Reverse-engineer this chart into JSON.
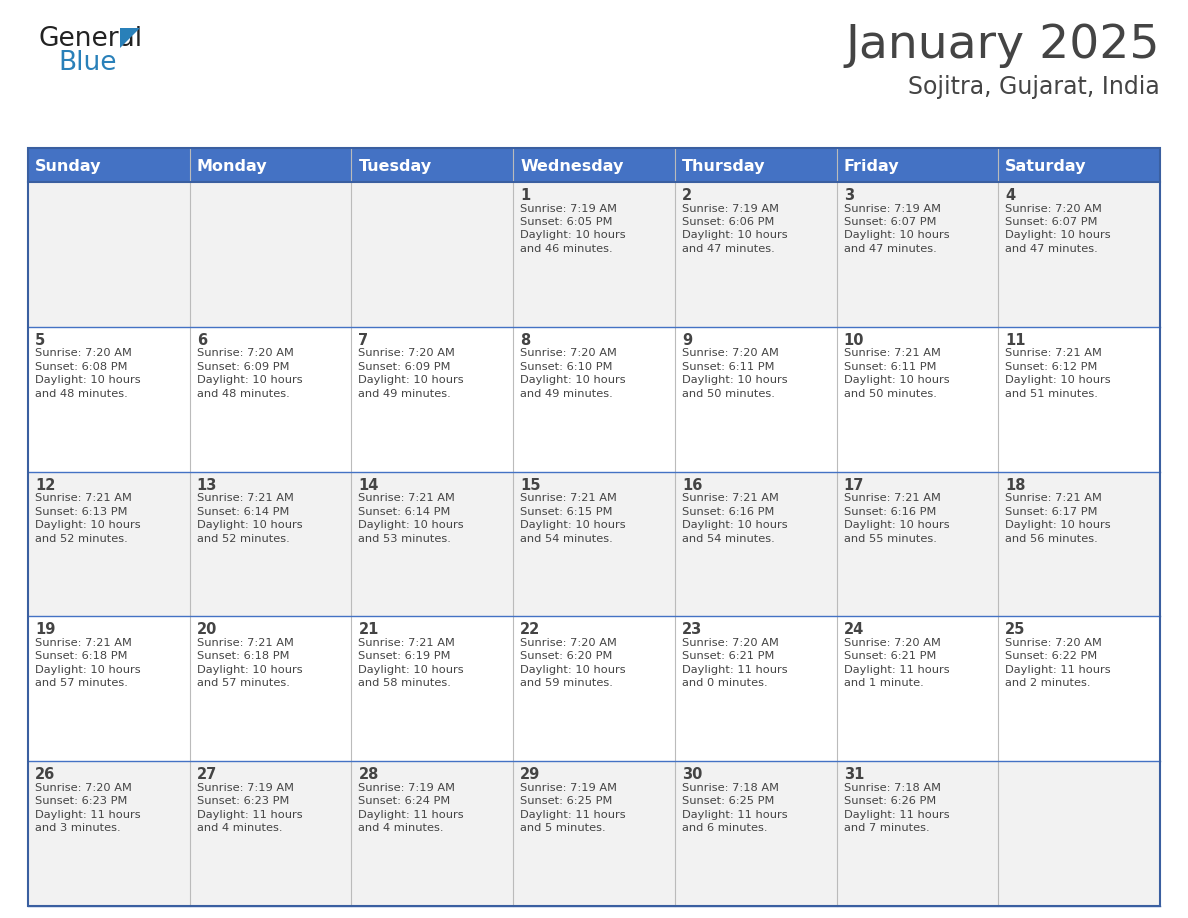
{
  "title": "January 2025",
  "subtitle": "Sojitra, Gujarat, India",
  "header_color": "#4472C4",
  "header_text_color": "#FFFFFF",
  "cell_bg_even": "#F2F2F2",
  "cell_bg_odd": "#FFFFFF",
  "day_names": [
    "Sunday",
    "Monday",
    "Tuesday",
    "Wednesday",
    "Thursday",
    "Friday",
    "Saturday"
  ],
  "days": [
    {
      "day": 1,
      "col": 3,
      "row": 0,
      "sunrise": "7:19 AM",
      "sunset": "6:05 PM",
      "daylight_hours": 10,
      "daylight_minutes": 46
    },
    {
      "day": 2,
      "col": 4,
      "row": 0,
      "sunrise": "7:19 AM",
      "sunset": "6:06 PM",
      "daylight_hours": 10,
      "daylight_minutes": 47
    },
    {
      "day": 3,
      "col": 5,
      "row": 0,
      "sunrise": "7:19 AM",
      "sunset": "6:07 PM",
      "daylight_hours": 10,
      "daylight_minutes": 47
    },
    {
      "day": 4,
      "col": 6,
      "row": 0,
      "sunrise": "7:20 AM",
      "sunset": "6:07 PM",
      "daylight_hours": 10,
      "daylight_minutes": 47
    },
    {
      "day": 5,
      "col": 0,
      "row": 1,
      "sunrise": "7:20 AM",
      "sunset": "6:08 PM",
      "daylight_hours": 10,
      "daylight_minutes": 48
    },
    {
      "day": 6,
      "col": 1,
      "row": 1,
      "sunrise": "7:20 AM",
      "sunset": "6:09 PM",
      "daylight_hours": 10,
      "daylight_minutes": 48
    },
    {
      "day": 7,
      "col": 2,
      "row": 1,
      "sunrise": "7:20 AM",
      "sunset": "6:09 PM",
      "daylight_hours": 10,
      "daylight_minutes": 49
    },
    {
      "day": 8,
      "col": 3,
      "row": 1,
      "sunrise": "7:20 AM",
      "sunset": "6:10 PM",
      "daylight_hours": 10,
      "daylight_minutes": 49
    },
    {
      "day": 9,
      "col": 4,
      "row": 1,
      "sunrise": "7:20 AM",
      "sunset": "6:11 PM",
      "daylight_hours": 10,
      "daylight_minutes": 50
    },
    {
      "day": 10,
      "col": 5,
      "row": 1,
      "sunrise": "7:21 AM",
      "sunset": "6:11 PM",
      "daylight_hours": 10,
      "daylight_minutes": 50
    },
    {
      "day": 11,
      "col": 6,
      "row": 1,
      "sunrise": "7:21 AM",
      "sunset": "6:12 PM",
      "daylight_hours": 10,
      "daylight_minutes": 51
    },
    {
      "day": 12,
      "col": 0,
      "row": 2,
      "sunrise": "7:21 AM",
      "sunset": "6:13 PM",
      "daylight_hours": 10,
      "daylight_minutes": 52
    },
    {
      "day": 13,
      "col": 1,
      "row": 2,
      "sunrise": "7:21 AM",
      "sunset": "6:14 PM",
      "daylight_hours": 10,
      "daylight_minutes": 52
    },
    {
      "day": 14,
      "col": 2,
      "row": 2,
      "sunrise": "7:21 AM",
      "sunset": "6:14 PM",
      "daylight_hours": 10,
      "daylight_minutes": 53
    },
    {
      "day": 15,
      "col": 3,
      "row": 2,
      "sunrise": "7:21 AM",
      "sunset": "6:15 PM",
      "daylight_hours": 10,
      "daylight_minutes": 54
    },
    {
      "day": 16,
      "col": 4,
      "row": 2,
      "sunrise": "7:21 AM",
      "sunset": "6:16 PM",
      "daylight_hours": 10,
      "daylight_minutes": 54
    },
    {
      "day": 17,
      "col": 5,
      "row": 2,
      "sunrise": "7:21 AM",
      "sunset": "6:16 PM",
      "daylight_hours": 10,
      "daylight_minutes": 55
    },
    {
      "day": 18,
      "col": 6,
      "row": 2,
      "sunrise": "7:21 AM",
      "sunset": "6:17 PM",
      "daylight_hours": 10,
      "daylight_minutes": 56
    },
    {
      "day": 19,
      "col": 0,
      "row": 3,
      "sunrise": "7:21 AM",
      "sunset": "6:18 PM",
      "daylight_hours": 10,
      "daylight_minutes": 57
    },
    {
      "day": 20,
      "col": 1,
      "row": 3,
      "sunrise": "7:21 AM",
      "sunset": "6:18 PM",
      "daylight_hours": 10,
      "daylight_minutes": 57
    },
    {
      "day": 21,
      "col": 2,
      "row": 3,
      "sunrise": "7:21 AM",
      "sunset": "6:19 PM",
      "daylight_hours": 10,
      "daylight_minutes": 58
    },
    {
      "day": 22,
      "col": 3,
      "row": 3,
      "sunrise": "7:20 AM",
      "sunset": "6:20 PM",
      "daylight_hours": 10,
      "daylight_minutes": 59
    },
    {
      "day": 23,
      "col": 4,
      "row": 3,
      "sunrise": "7:20 AM",
      "sunset": "6:21 PM",
      "daylight_hours": 11,
      "daylight_minutes": 0
    },
    {
      "day": 24,
      "col": 5,
      "row": 3,
      "sunrise": "7:20 AM",
      "sunset": "6:21 PM",
      "daylight_hours": 11,
      "daylight_minutes": 1
    },
    {
      "day": 25,
      "col": 6,
      "row": 3,
      "sunrise": "7:20 AM",
      "sunset": "6:22 PM",
      "daylight_hours": 11,
      "daylight_minutes": 2
    },
    {
      "day": 26,
      "col": 0,
      "row": 4,
      "sunrise": "7:20 AM",
      "sunset": "6:23 PM",
      "daylight_hours": 11,
      "daylight_minutes": 3
    },
    {
      "day": 27,
      "col": 1,
      "row": 4,
      "sunrise": "7:19 AM",
      "sunset": "6:23 PM",
      "daylight_hours": 11,
      "daylight_minutes": 4
    },
    {
      "day": 28,
      "col": 2,
      "row": 4,
      "sunrise": "7:19 AM",
      "sunset": "6:24 PM",
      "daylight_hours": 11,
      "daylight_minutes": 4
    },
    {
      "day": 29,
      "col": 3,
      "row": 4,
      "sunrise": "7:19 AM",
      "sunset": "6:25 PM",
      "daylight_hours": 11,
      "daylight_minutes": 5
    },
    {
      "day": 30,
      "col": 4,
      "row": 4,
      "sunrise": "7:18 AM",
      "sunset": "6:25 PM",
      "daylight_hours": 11,
      "daylight_minutes": 6
    },
    {
      "day": 31,
      "col": 5,
      "row": 4,
      "sunrise": "7:18 AM",
      "sunset": "6:26 PM",
      "daylight_hours": 11,
      "daylight_minutes": 7
    }
  ],
  "logo_text_general": "General",
  "logo_text_blue": "Blue",
  "logo_color_general": "#222222",
  "logo_color_blue": "#2980B9",
  "border_color": "#3A5FA0",
  "line_color": "#4472C4",
  "text_color": "#444444",
  "fig_width": 11.88,
  "fig_height": 9.18,
  "dpi": 100
}
